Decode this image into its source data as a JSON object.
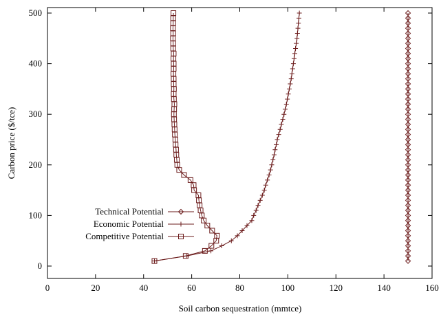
{
  "chart_data": {
    "type": "line",
    "title": "",
    "xlabel": "Soil carbon sequestration (mmtce)",
    "ylabel": "Carbon price ($/tce)",
    "xlim": [
      0,
      160
    ],
    "ylim": [
      0,
      500
    ],
    "xticks": [
      0,
      20,
      40,
      60,
      80,
      100,
      120,
      140,
      160
    ],
    "yticks": [
      0,
      100,
      200,
      300,
      400,
      500
    ],
    "grid": false,
    "legend_position": "middle-left",
    "line_color": "#6b1b1b",
    "series": [
      {
        "name": "Technical Potential",
        "marker": "diamond",
        "points": [
          [
            150,
            10
          ],
          [
            150,
            20
          ],
          [
            150,
            30
          ],
          [
            150,
            40
          ],
          [
            150,
            50
          ],
          [
            150,
            60
          ],
          [
            150,
            70
          ],
          [
            150,
            80
          ],
          [
            150,
            90
          ],
          [
            150,
            100
          ],
          [
            150,
            110
          ],
          [
            150,
            120
          ],
          [
            150,
            130
          ],
          [
            150,
            140
          ],
          [
            150,
            150
          ],
          [
            150,
            160
          ],
          [
            150,
            170
          ],
          [
            150,
            180
          ],
          [
            150,
            190
          ],
          [
            150,
            200
          ],
          [
            150,
            210
          ],
          [
            150,
            220
          ],
          [
            150,
            230
          ],
          [
            150,
            240
          ],
          [
            150,
            250
          ],
          [
            150,
            260
          ],
          [
            150,
            270
          ],
          [
            150,
            280
          ],
          [
            150,
            290
          ],
          [
            150,
            300
          ],
          [
            150,
            310
          ],
          [
            150,
            320
          ],
          [
            150,
            330
          ],
          [
            150,
            340
          ],
          [
            150,
            350
          ],
          [
            150,
            360
          ],
          [
            150,
            370
          ],
          [
            150,
            380
          ],
          [
            150,
            390
          ],
          [
            150,
            400
          ],
          [
            150,
            410
          ],
          [
            150,
            420
          ],
          [
            150,
            430
          ],
          [
            150,
            440
          ],
          [
            150,
            450
          ],
          [
            150,
            460
          ],
          [
            150,
            470
          ],
          [
            150,
            480
          ],
          [
            150,
            490
          ],
          [
            150,
            500
          ]
        ]
      },
      {
        "name": "Economic Potential",
        "marker": "plus",
        "points": [
          [
            44.5,
            10
          ],
          [
            58,
            20
          ],
          [
            68,
            30
          ],
          [
            72.5,
            40
          ],
          [
            76.5,
            50
          ],
          [
            79,
            60
          ],
          [
            81,
            70
          ],
          [
            83,
            80
          ],
          [
            85,
            90
          ],
          [
            85.8,
            100
          ],
          [
            86.8,
            110
          ],
          [
            87.6,
            120
          ],
          [
            88.5,
            130
          ],
          [
            89.4,
            140
          ],
          [
            90.2,
            150
          ],
          [
            90.8,
            160
          ],
          [
            91.5,
            170
          ],
          [
            92.2,
            180
          ],
          [
            92.8,
            190
          ],
          [
            93.3,
            200
          ],
          [
            93.8,
            210
          ],
          [
            94.3,
            220
          ],
          [
            94.7,
            230
          ],
          [
            95.2,
            240
          ],
          [
            95.6,
            250
          ],
          [
            96.2,
            260
          ],
          [
            96.8,
            270
          ],
          [
            97.3,
            280
          ],
          [
            97.9,
            290
          ],
          [
            98.4,
            300
          ],
          [
            98.9,
            310
          ],
          [
            99.4,
            320
          ],
          [
            99.8,
            330
          ],
          [
            100.2,
            340
          ],
          [
            100.6,
            350
          ],
          [
            101,
            360
          ],
          [
            101.4,
            370
          ],
          [
            101.7,
            380
          ],
          [
            102,
            390
          ],
          [
            102.3,
            400
          ],
          [
            102.6,
            410
          ],
          [
            102.9,
            420
          ],
          [
            103.2,
            430
          ],
          [
            103.5,
            440
          ],
          [
            103.8,
            450
          ],
          [
            104,
            460
          ],
          [
            104.2,
            470
          ],
          [
            104.4,
            480
          ],
          [
            104.6,
            490
          ],
          [
            104.8,
            500
          ]
        ]
      },
      {
        "name": "Competitive Potential",
        "marker": "square",
        "points": [
          [
            44.5,
            10
          ],
          [
            57.5,
            20
          ],
          [
            65.5,
            30
          ],
          [
            68.2,
            40
          ],
          [
            70.2,
            50
          ],
          [
            70.5,
            60
          ],
          [
            68.5,
            70
          ],
          [
            66.5,
            80
          ],
          [
            65,
            90
          ],
          [
            64.2,
            100
          ],
          [
            63.7,
            110
          ],
          [
            63.3,
            120
          ],
          [
            63,
            130
          ],
          [
            62.8,
            140
          ],
          [
            61,
            150
          ],
          [
            60.8,
            160
          ],
          [
            59.5,
            170
          ],
          [
            56.8,
            180
          ],
          [
            54.8,
            190
          ],
          [
            54,
            200
          ],
          [
            53.8,
            210
          ],
          [
            53.6,
            220
          ],
          [
            53.5,
            230
          ],
          [
            53.3,
            240
          ],
          [
            53.2,
            250
          ],
          [
            53,
            260
          ],
          [
            52.9,
            270
          ],
          [
            52.8,
            280
          ],
          [
            52.7,
            290
          ],
          [
            52.6,
            300
          ],
          [
            52.7,
            310
          ],
          [
            52.8,
            320
          ],
          [
            52.6,
            330
          ],
          [
            52.5,
            340
          ],
          [
            52.6,
            350
          ],
          [
            52.5,
            360
          ],
          [
            52.5,
            370
          ],
          [
            52.4,
            380
          ],
          [
            52.5,
            390
          ],
          [
            52.5,
            400
          ],
          [
            52.4,
            410
          ],
          [
            52.5,
            420
          ],
          [
            52.3,
            430
          ],
          [
            52.3,
            440
          ],
          [
            52.2,
            450
          ],
          [
            52.3,
            460
          ],
          [
            52.2,
            470
          ],
          [
            52.3,
            480
          ],
          [
            52.3,
            490
          ],
          [
            52.4,
            500
          ]
        ]
      }
    ]
  }
}
